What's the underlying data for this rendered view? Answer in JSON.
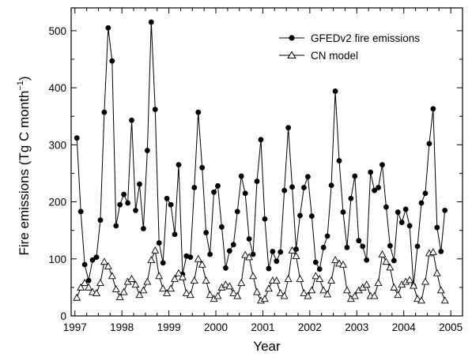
{
  "chart_data": {
    "type": "line",
    "xlabel": "Year",
    "ylabel_main": "Fire emissions (Tg C month",
    "ylabel_sup": "−1",
    "ylabel_close": ")",
    "xlim": [
      1996.92,
      2005.25
    ],
    "ylim": [
      0,
      540
    ],
    "x_ticks": [
      1997,
      1998,
      1999,
      2000,
      2001,
      2002,
      2003,
      2004,
      2005
    ],
    "x_tick_labels": [
      "1997",
      "1998",
      "1999",
      "2000",
      "2001",
      "2002",
      "2003",
      "2004",
      "2005"
    ],
    "y_ticks": [
      0,
      100,
      200,
      300,
      400,
      500
    ],
    "y_tick_labels": [
      "0",
      "100",
      "200",
      "300",
      "400",
      "500"
    ],
    "legend_position": "top-right",
    "series": [
      {
        "name": "GFEDv2 fire emissions",
        "marker": "filled-circle",
        "values": [
          312,
          183,
          90,
          62,
          98,
          103,
          168,
          357,
          505,
          447,
          158,
          195,
          213,
          198,
          343,
          185,
          231,
          153,
          290,
          515,
          362,
          128,
          93,
          206,
          195,
          143,
          265,
          73,
          105,
          103,
          225,
          357,
          260,
          146,
          108,
          217,
          228,
          156,
          84,
          114,
          125,
          183,
          245,
          215,
          135,
          108,
          236,
          309,
          170,
          83,
          113,
          96,
          112,
          220,
          330,
          226,
          117,
          176,
          225,
          244,
          175,
          94,
          82,
          120,
          140,
          229,
          394,
          272,
          182,
          120,
          206,
          245,
          132,
          122,
          98,
          252,
          220,
          225,
          265,
          191,
          123,
          97,
          182,
          164,
          187,
          158,
          53,
          122,
          198,
          215,
          302,
          363,
          155,
          113,
          185
        ]
      },
      {
        "name": "CN model",
        "marker": "open-triangle",
        "values": [
          32,
          50,
          58,
          50,
          42,
          40,
          58,
          95,
          87,
          70,
          47,
          33,
          42,
          60,
          65,
          55,
          37,
          45,
          60,
          98,
          115,
          70,
          48,
          40,
          48,
          65,
          75,
          68,
          40,
          37,
          62,
          100,
          90,
          62,
          37,
          30,
          35,
          50,
          55,
          52,
          40,
          35,
          58,
          107,
          103,
          70,
          42,
          27,
          30,
          48,
          62,
          62,
          40,
          35,
          65,
          115,
          105,
          65,
          40,
          35,
          45,
          70,
          65,
          45,
          38,
          62,
          98,
          92,
          90,
          45,
          30,
          35,
          45,
          50,
          55,
          35,
          35,
          58,
          108,
          95,
          85,
          50,
          37,
          55,
          60,
          63,
          53,
          30,
          27,
          60,
          110,
          112,
          75,
          45,
          27
        ]
      }
    ]
  }
}
